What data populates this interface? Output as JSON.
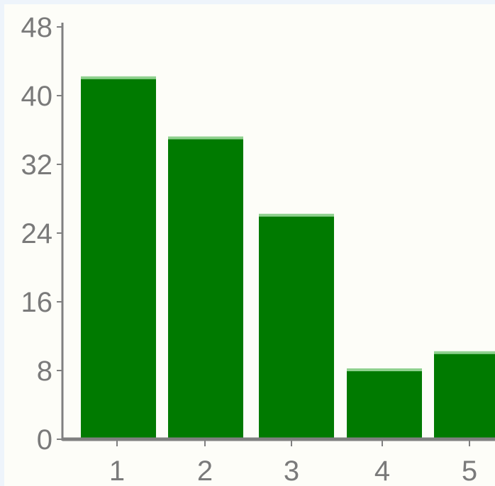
{
  "chart_data": {
    "type": "bar",
    "categories": [
      "1",
      "2",
      "3",
      "4",
      "5"
    ],
    "values": [
      42,
      35,
      26,
      8,
      10
    ],
    "ylim": [
      0,
      48
    ],
    "yticks": [
      0,
      8,
      16,
      24,
      32,
      40,
      48
    ],
    "grid": false,
    "legend": "none",
    "colors": {
      "bar": "#007a00",
      "bar_top": "#8fd18f",
      "axis": "#808080",
      "tick_text": "#7a7a7a",
      "plot_bg": "#fdfdf8",
      "page_bg": "#eef4fb"
    }
  }
}
